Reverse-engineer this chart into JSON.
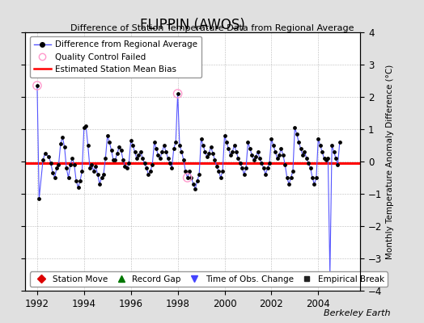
{
  "title": "FLIPPIN (AWOS)",
  "subtitle": "Difference of Station Temperature Data from Regional Average",
  "ylabel_right": "Monthly Temperature Anomaly Difference (°C)",
  "xlim": [
    1991.5,
    2005.8
  ],
  "ylim": [
    -4,
    4
  ],
  "yticks": [
    -4,
    -3,
    -2,
    -1,
    0,
    1,
    2,
    3,
    4
  ],
  "xticks": [
    1992,
    1994,
    1996,
    1998,
    2000,
    2002,
    2004
  ],
  "bias_value": -0.05,
  "background_color": "#e0e0e0",
  "plot_bg_color": "#ffffff",
  "line_color": "#5555ff",
  "marker_color": "#000000",
  "bias_color": "#ff0000",
  "qc_fail_color": "#ff99cc",
  "time_series": [
    [
      1992.0,
      2.35
    ],
    [
      1992.083,
      -1.15
    ],
    [
      1992.25,
      0.05
    ],
    [
      1992.333,
      0.25
    ],
    [
      1992.5,
      0.15
    ],
    [
      1992.583,
      -0.05
    ],
    [
      1992.667,
      -0.35
    ],
    [
      1992.75,
      -0.5
    ],
    [
      1992.833,
      -0.2
    ],
    [
      1992.917,
      -0.1
    ],
    [
      1993.0,
      0.55
    ],
    [
      1993.083,
      0.75
    ],
    [
      1993.167,
      0.45
    ],
    [
      1993.25,
      -0.2
    ],
    [
      1993.333,
      -0.5
    ],
    [
      1993.417,
      -0.1
    ],
    [
      1993.5,
      0.1
    ],
    [
      1993.583,
      -0.1
    ],
    [
      1993.667,
      -0.6
    ],
    [
      1993.75,
      -0.8
    ],
    [
      1993.833,
      -0.6
    ],
    [
      1993.917,
      -0.3
    ],
    [
      1994.0,
      1.05
    ],
    [
      1994.083,
      1.1
    ],
    [
      1994.167,
      0.5
    ],
    [
      1994.25,
      -0.2
    ],
    [
      1994.333,
      -0.1
    ],
    [
      1994.417,
      -0.3
    ],
    [
      1994.5,
      -0.15
    ],
    [
      1994.583,
      -0.4
    ],
    [
      1994.667,
      -0.7
    ],
    [
      1994.75,
      -0.5
    ],
    [
      1994.833,
      -0.4
    ],
    [
      1994.917,
      0.1
    ],
    [
      1995.0,
      0.8
    ],
    [
      1995.083,
      0.6
    ],
    [
      1995.167,
      0.35
    ],
    [
      1995.25,
      0.05
    ],
    [
      1995.333,
      0.05
    ],
    [
      1995.417,
      0.25
    ],
    [
      1995.5,
      0.45
    ],
    [
      1995.583,
      0.35
    ],
    [
      1995.667,
      0.05
    ],
    [
      1995.75,
      -0.15
    ],
    [
      1995.833,
      -0.2
    ],
    [
      1995.917,
      -0.05
    ],
    [
      1996.0,
      0.65
    ],
    [
      1996.083,
      0.5
    ],
    [
      1996.167,
      0.3
    ],
    [
      1996.25,
      0.1
    ],
    [
      1996.333,
      0.2
    ],
    [
      1996.417,
      0.3
    ],
    [
      1996.5,
      0.1
    ],
    [
      1996.583,
      -0.05
    ],
    [
      1996.667,
      -0.2
    ],
    [
      1996.75,
      -0.4
    ],
    [
      1996.833,
      -0.3
    ],
    [
      1996.917,
      -0.1
    ],
    [
      1997.0,
      0.6
    ],
    [
      1997.083,
      0.4
    ],
    [
      1997.167,
      0.2
    ],
    [
      1997.25,
      0.1
    ],
    [
      1997.333,
      0.3
    ],
    [
      1997.417,
      0.5
    ],
    [
      1997.5,
      0.3
    ],
    [
      1997.583,
      0.1
    ],
    [
      1997.667,
      -0.05
    ],
    [
      1997.75,
      -0.2
    ],
    [
      1997.833,
      0.4
    ],
    [
      1997.917,
      0.6
    ],
    [
      1998.0,
      2.1
    ],
    [
      1998.083,
      0.5
    ],
    [
      1998.167,
      0.3
    ],
    [
      1998.25,
      0.05
    ],
    [
      1998.333,
      -0.3
    ],
    [
      1998.417,
      -0.5
    ],
    [
      1998.5,
      -0.3
    ],
    [
      1998.583,
      -0.5
    ],
    [
      1998.667,
      -0.7
    ],
    [
      1998.75,
      -0.85
    ],
    [
      1998.833,
      -0.6
    ],
    [
      1998.917,
      -0.4
    ],
    [
      1999.0,
      0.7
    ],
    [
      1999.083,
      0.5
    ],
    [
      1999.167,
      0.3
    ],
    [
      1999.25,
      0.15
    ],
    [
      1999.333,
      0.25
    ],
    [
      1999.417,
      0.45
    ],
    [
      1999.5,
      0.25
    ],
    [
      1999.583,
      0.05
    ],
    [
      1999.667,
      -0.15
    ],
    [
      1999.75,
      -0.3
    ],
    [
      1999.833,
      -0.5
    ],
    [
      1999.917,
      -0.3
    ],
    [
      2000.0,
      0.8
    ],
    [
      2000.083,
      0.6
    ],
    [
      2000.167,
      0.4
    ],
    [
      2000.25,
      0.2
    ],
    [
      2000.333,
      0.3
    ],
    [
      2000.417,
      0.5
    ],
    [
      2000.5,
      0.3
    ],
    [
      2000.583,
      0.1
    ],
    [
      2000.667,
      -0.05
    ],
    [
      2000.75,
      -0.2
    ],
    [
      2000.833,
      -0.4
    ],
    [
      2000.917,
      -0.2
    ],
    [
      2001.0,
      0.6
    ],
    [
      2001.083,
      0.4
    ],
    [
      2001.167,
      0.2
    ],
    [
      2001.25,
      0.05
    ],
    [
      2001.333,
      0.15
    ],
    [
      2001.417,
      0.3
    ],
    [
      2001.5,
      0.1
    ],
    [
      2001.583,
      -0.05
    ],
    [
      2001.667,
      -0.2
    ],
    [
      2001.75,
      -0.4
    ],
    [
      2001.833,
      -0.2
    ],
    [
      2001.917,
      -0.05
    ],
    [
      2002.0,
      0.7
    ],
    [
      2002.083,
      0.5
    ],
    [
      2002.167,
      0.3
    ],
    [
      2002.25,
      0.1
    ],
    [
      2002.333,
      0.2
    ],
    [
      2002.417,
      0.4
    ],
    [
      2002.5,
      0.2
    ],
    [
      2002.583,
      -0.1
    ],
    [
      2002.667,
      -0.5
    ],
    [
      2002.75,
      -0.7
    ],
    [
      2002.833,
      -0.5
    ],
    [
      2002.917,
      -0.3
    ],
    [
      2003.0,
      1.05
    ],
    [
      2003.083,
      0.85
    ],
    [
      2003.167,
      0.6
    ],
    [
      2003.25,
      0.4
    ],
    [
      2003.333,
      0.2
    ],
    [
      2003.417,
      0.3
    ],
    [
      2003.5,
      0.1
    ],
    [
      2003.583,
      -0.05
    ],
    [
      2003.667,
      -0.2
    ],
    [
      2003.75,
      -0.5
    ],
    [
      2003.833,
      -0.7
    ],
    [
      2003.917,
      -0.5
    ],
    [
      2004.0,
      0.7
    ],
    [
      2004.083,
      0.5
    ],
    [
      2004.167,
      0.3
    ],
    [
      2004.25,
      0.1
    ],
    [
      2004.333,
      0.05
    ],
    [
      2004.417,
      0.1
    ],
    [
      2004.5,
      -3.5
    ],
    [
      2004.583,
      0.5
    ],
    [
      2004.667,
      0.3
    ],
    [
      2004.75,
      0.1
    ],
    [
      2004.833,
      -0.1
    ],
    [
      2004.917,
      0.6
    ]
  ],
  "qc_fail_points": [
    [
      1992.0,
      2.35
    ],
    [
      1998.0,
      2.1
    ],
    [
      1998.417,
      -0.5
    ]
  ],
  "berkeley_earth_text": "Berkeley Earth",
  "legend1_items": [
    {
      "label": "Difference from Regional Average"
    },
    {
      "label": "Quality Control Failed"
    },
    {
      "label": "Estimated Station Mean Bias"
    }
  ],
  "legend2_items": [
    {
      "label": "Station Move",
      "color": "#dd0000",
      "marker": "D"
    },
    {
      "label": "Record Gap",
      "color": "#007700",
      "marker": "^"
    },
    {
      "label": "Time of Obs. Change",
      "color": "#4444ff",
      "marker": "v"
    },
    {
      "label": "Empirical Break",
      "color": "#222222",
      "marker": "s"
    }
  ]
}
